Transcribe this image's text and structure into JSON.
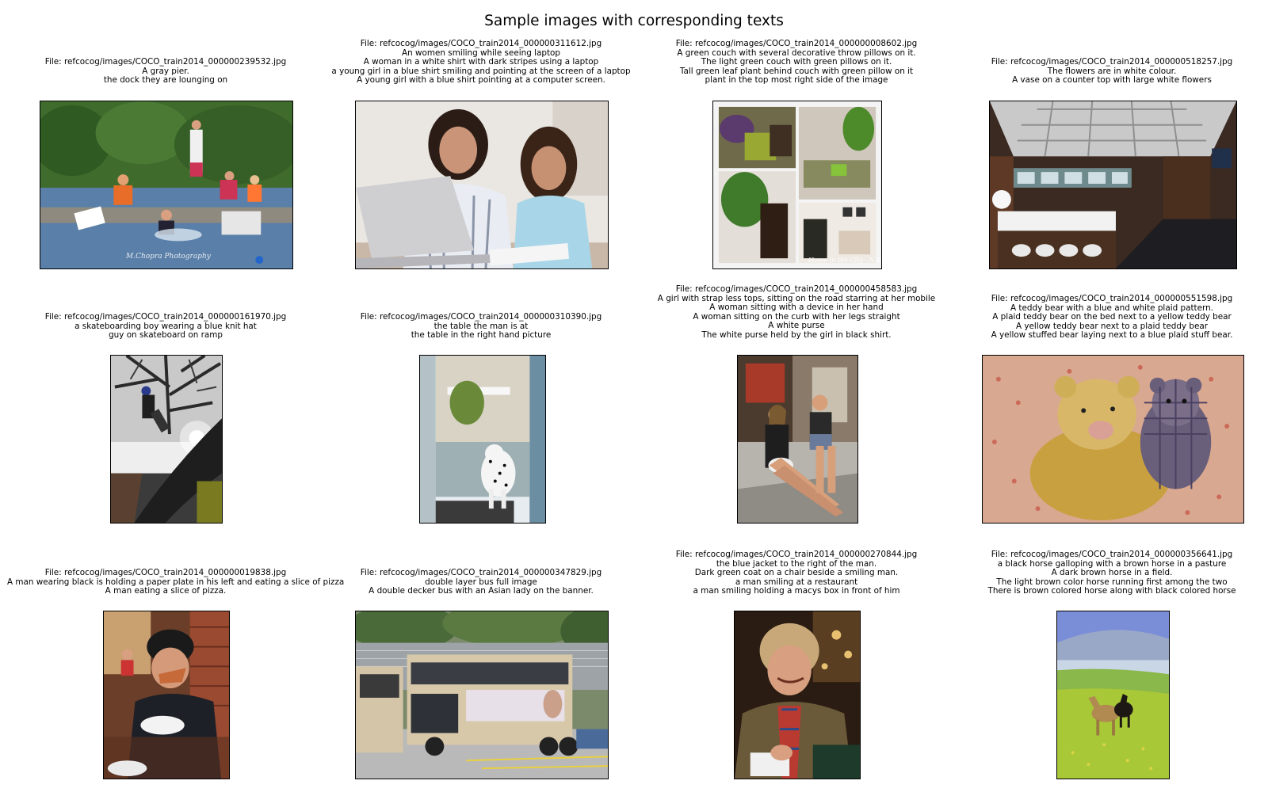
{
  "figure": {
    "title": "Sample images with corresponding texts"
  },
  "panels": [
    {
      "file": "File: refcocog/images/COCO_train2014_000000239532.jpg",
      "texts": [
        "A gray pier.",
        "the dock they are lounging on"
      ],
      "overlay": "M.Chopra Photography",
      "scene": "people-on-pier-in-lake"
    },
    {
      "file": "File: refcocog/images/COCO_train2014_000000311612.jpg",
      "texts": [
        "An women smiling while seeing laptop",
        "A woman in a white shirt with dark stripes using a laptop",
        "a young girl in a blue shirt smiling and pointing at the screen of a laptop",
        "A young girl with a blue shirt pointing at a computer screen."
      ],
      "scene": "woman-and-girl-with-laptop"
    },
    {
      "file": "File: refcocog/images/COCO_train2014_000000008602.jpg",
      "texts": [
        "A green couch with several decorative throw pillows on it.",
        "The light green couch with green pillows on it.",
        "Tall green leaf plant behind couch with green pillow on it",
        "plant in the top most right side of the image"
      ],
      "overlay": "Home in the City - N.K.",
      "scene": "interior-collage"
    },
    {
      "file": "File: refcocog/images/COCO_train2014_000000518257.jpg",
      "texts": [
        "The flowers are in white colour.",
        "A vase on a counter top with large white flowers"
      ],
      "scene": "bathroom-interior"
    },
    {
      "file": "File: refcocog/images/COCO_train2014_000000161970.jpg",
      "texts": [
        "a skateboarding boy wearing a blue knit hat",
        "guy on skateboard on ramp"
      ],
      "scene": "skateboarder-on-ramp"
    },
    {
      "file": "File: refcocog/images/COCO_train2014_000000310390.jpg",
      "texts": [
        "the table the man is at",
        "the table in the right hand picture"
      ],
      "scene": "dalmatian-in-doorway"
    },
    {
      "file": "File: refcocog/images/COCO_train2014_000000458583.jpg",
      "texts": [
        "A girl with strap less tops, sitting on the road starring at her mobile",
        "A woman sitting with a device in her hand",
        "A woman sitting on the curb with her legs straight",
        "A white purse",
        "The white purse held by the girl in black shirt."
      ],
      "scene": "women-sitting-on-curb"
    },
    {
      "file": "File: refcocog/images/COCO_train2014_000000551598.jpg",
      "texts": [
        "A teddy bear with a blue and white plaid pattern.",
        "A plaid teddy bear on the bed next to a yellow teddy bear",
        "A yellow teddy bear next to a plaid teddy bear",
        "A yellow stuffed bear laying next to a blue plaid stuff bear."
      ],
      "scene": "teddy-bears-on-bed"
    },
    {
      "file": "File: refcocog/images/COCO_train2014_000000019838.jpg",
      "texts": [
        "A man wearing black is holding a paper plate in his left and eating a slice of pizza",
        "A man eating a slice of pizza."
      ],
      "scene": "man-eating-pizza"
    },
    {
      "file": "File: refcocog/images/COCO_train2014_000000347829.jpg",
      "texts": [
        "double layer bus full image",
        "A double decker bus with an Asian lady on the banner."
      ],
      "scene": "double-decker-bus"
    },
    {
      "file": "File: refcocog/images/COCO_train2014_000000270844.jpg",
      "texts": [
        "the blue jacket to the right of the man.",
        "Dark green coat on a chair beside a smiling man.",
        "a man smiling at a restaurant",
        "a man smiling holding a macys box in front of him"
      ],
      "scene": "smiling-man-restaurant"
    },
    {
      "file": "File: refcocog/images/COCO_train2014_000000356641.jpg",
      "texts": [
        "a black horse galloping with a brown horse in a pasture",
        "A dark brown horse in a field.",
        "The light brown color horse running first among the two",
        "There is brown colored horse along with black colored horse"
      ],
      "scene": "horses-in-pasture"
    }
  ]
}
